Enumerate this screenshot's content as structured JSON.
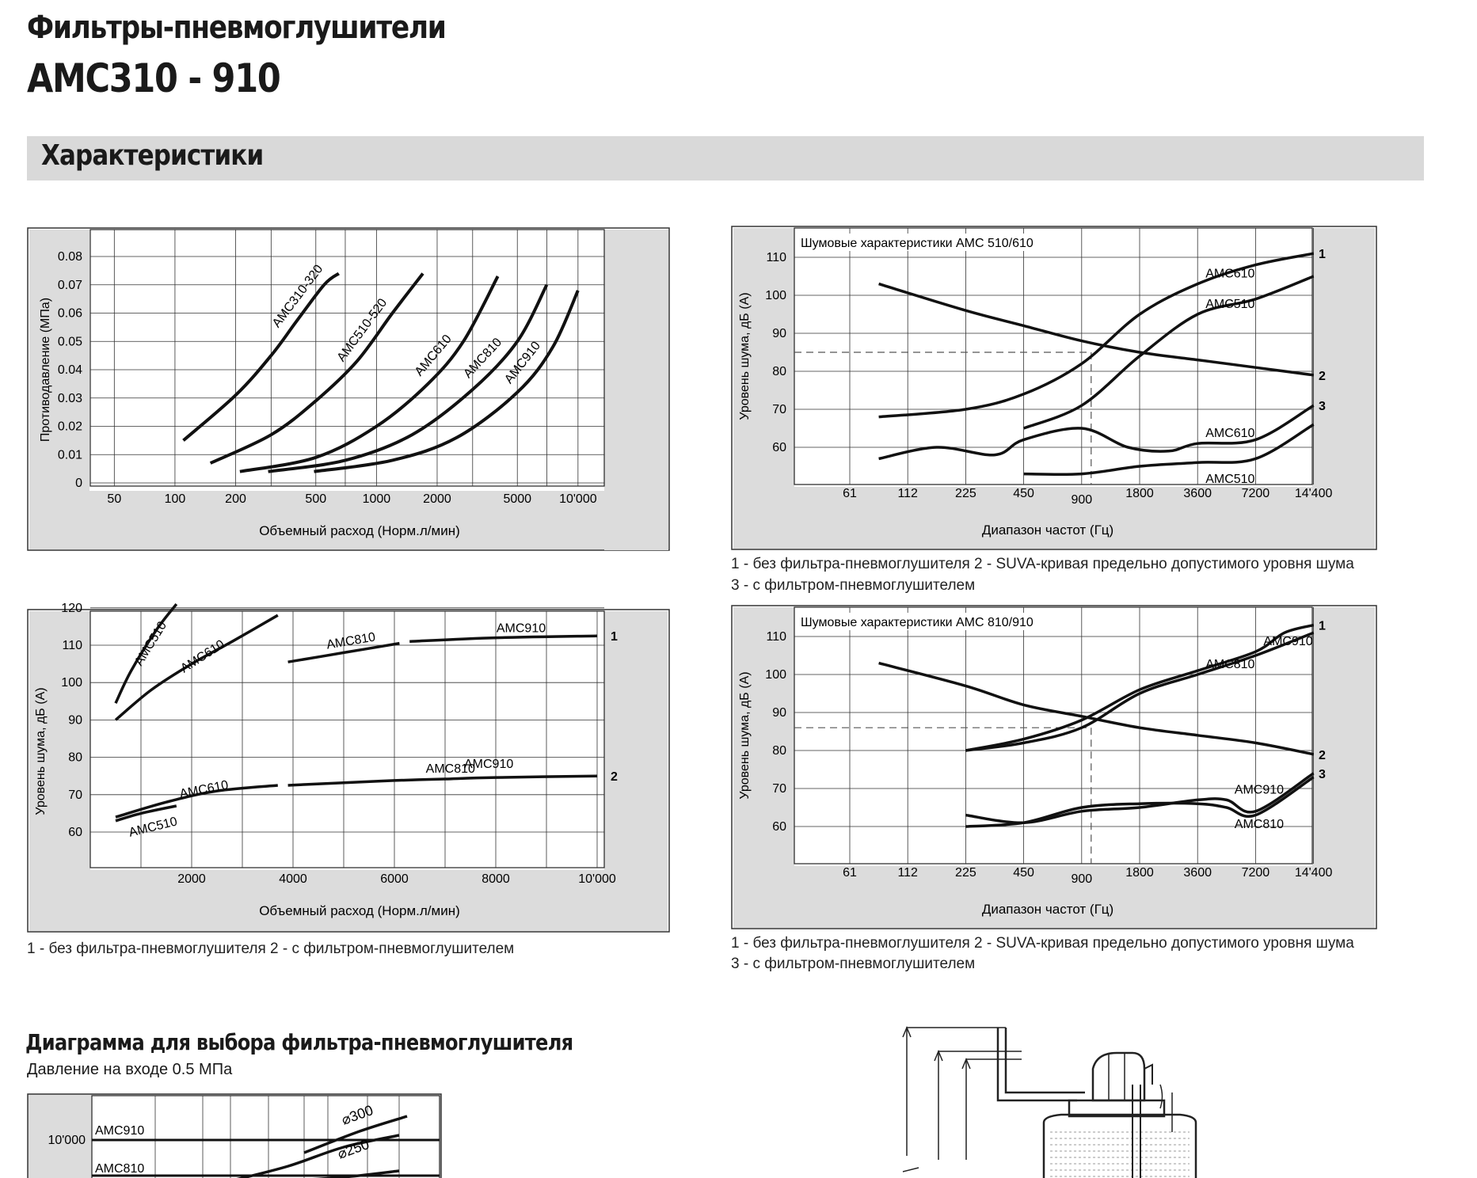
{
  "header": {
    "title_line1": "Фильтры-пневмоглушители",
    "title_line2": "AMC310 - 910",
    "section": "Характеристики"
  },
  "captions": {
    "flow_noise": "1 - без фильтра-пневмоглушителя    2 - с фильтром-пневмоглушителем",
    "noise_line1": "1 - без фильтра-пневмоглушителя    2 - SUVA-кривая предельно допустимого уровня шума",
    "noise_line2": "3 - с фильтром-пневмоглушителем"
  },
  "selection": {
    "title": "Диаграмма для выбора фильтра-пневмоглушителя",
    "note": "Давление на входе 0.5 МПа"
  },
  "chart_data": [
    {
      "id": "backpressure",
      "type": "line",
      "xlabel": "Объемный расход (Норм.л/мин)",
      "ylabel": "Противодавление (МПа)",
      "x_scale": "log",
      "x_ticks": [
        50,
        100,
        200,
        500,
        1000,
        2000,
        5000,
        10000
      ],
      "x_tick_labels": [
        "50",
        "100",
        "200",
        "500",
        "1000",
        "2000",
        "5000",
        "10'000"
      ],
      "y_ticks": [
        0,
        0.01,
        0.02,
        0.03,
        0.04,
        0.05,
        0.06,
        0.07,
        0.08
      ],
      "y_tick_labels": [
        "0",
        "0.01",
        "0.02",
        "0.03",
        "0.04",
        "0.05",
        "0.06",
        "0.07",
        "0.08"
      ],
      "series": [
        {
          "name": "AMC310-320",
          "x": [
            110,
            200,
            300,
            400,
            550,
            650
          ],
          "y": [
            0.015,
            0.031,
            0.045,
            0.057,
            0.07,
            0.074
          ]
        },
        {
          "name": "AMC510-520",
          "x": [
            150,
            300,
            500,
            800,
            1200,
            1700
          ],
          "y": [
            0.007,
            0.017,
            0.029,
            0.043,
            0.06,
            0.074
          ]
        },
        {
          "name": "AMC610",
          "x": [
            210,
            500,
            1000,
            1800,
            2700,
            4000
          ],
          "y": [
            0.004,
            0.009,
            0.02,
            0.035,
            0.05,
            0.073
          ]
        },
        {
          "name": "AMC810",
          "x": [
            290,
            700,
            1500,
            3000,
            5000,
            7000
          ],
          "y": [
            0.004,
            0.008,
            0.017,
            0.033,
            0.05,
            0.07
          ]
        },
        {
          "name": "AMC910",
          "x": [
            490,
            1200,
            2500,
            5000,
            7500,
            10000
          ],
          "y": [
            0.004,
            0.008,
            0.016,
            0.032,
            0.048,
            0.068
          ]
        }
      ]
    },
    {
      "id": "noise_510_610",
      "type": "line",
      "title": "Шумовые характеристики AMC 510/610",
      "xlabel": "Диапазон частот (Гц)",
      "ylabel": "Уровень шума, дБ (А)",
      "x_ticks": [
        "61",
        "112",
        "225",
        "450",
        "900",
        "1800",
        "3600",
        "7200",
        "14'400"
      ],
      "y_ticks": [
        60,
        70,
        80,
        90,
        100,
        110
      ],
      "reference_line": {
        "x": "900",
        "y": 85
      },
      "series": [
        {
          "name": "AMC610",
          "label": "1",
          "x": [
            0.5,
            2,
            3,
            4,
            5,
            6,
            7,
            8
          ],
          "y": [
            68,
            70,
            74,
            82,
            95,
            103,
            108,
            111
          ]
        },
        {
          "name": "AMC510",
          "label": "1",
          "x": [
            3,
            4,
            5,
            6,
            7,
            8
          ],
          "y": [
            65,
            71,
            84,
            95,
            99,
            105
          ]
        },
        {
          "name": "SUVA",
          "label": "2",
          "x": [
            0.5,
            2,
            3,
            4,
            5,
            6,
            7,
            8
          ],
          "y": [
            103,
            96,
            92,
            88,
            85,
            83,
            81,
            79
          ]
        },
        {
          "name": "AMC610",
          "label": "3",
          "x": [
            0.5,
            1.5,
            2.5,
            3,
            4,
            4.8,
            5.5,
            6,
            7,
            8
          ],
          "y": [
            57,
            60,
            58,
            62,
            65,
            60,
            59,
            61,
            62,
            71
          ]
        },
        {
          "name": "AMC510",
          "label": "3",
          "x": [
            3,
            4,
            5,
            6,
            7,
            8
          ],
          "y": [
            53,
            53,
            55,
            56,
            57,
            66
          ]
        }
      ]
    },
    {
      "id": "noise_flow",
      "type": "line",
      "xlabel": "Объемный расход (Норм.л/мин)",
      "ylabel": "Уровень шума, дБ (А)",
      "x_ticks": [
        2000,
        4000,
        6000,
        8000,
        10000
      ],
      "x_tick_labels": [
        "2000",
        "4000",
        "6000",
        "8000",
        "10'000"
      ],
      "y_ticks": [
        60,
        70,
        80,
        90,
        100,
        110,
        120
      ],
      "series": [
        {
          "name": "AMC510",
          "label": "1",
          "x": [
            500,
            800,
            1300,
            1700
          ],
          "y": [
            94.5,
            103,
            114,
            121
          ]
        },
        {
          "name": "AMC610",
          "label": "1",
          "x": [
            500,
            1200,
            2000,
            2800,
            3700
          ],
          "y": [
            90,
            98,
            105,
            111,
            118
          ]
        },
        {
          "name": "AMC810",
          "label": "1",
          "x": [
            3900,
            5000,
            6100
          ],
          "y": [
            105.5,
            108,
            110.5
          ]
        },
        {
          "name": "AMC910",
          "label": "1",
          "x": [
            6300,
            8000,
            10000
          ],
          "y": [
            111,
            112,
            112.5
          ]
        },
        {
          "name": "AMC510",
          "label": "2",
          "x": [
            500,
            1000,
            1700
          ],
          "y": [
            63,
            65,
            67
          ]
        },
        {
          "name": "AMC610",
          "label": "2",
          "x": [
            500,
            1500,
            2500,
            3700
          ],
          "y": [
            64,
            68,
            71,
            72.5
          ]
        },
        {
          "name": "AMC810",
          "label": "2",
          "x": [
            3900,
            5000,
            6000,
            7000,
            8000,
            10000
          ],
          "y": [
            72.5,
            73.2,
            73.8,
            74.2,
            74.6,
            75
          ]
        },
        {
          "name": "AMC910",
          "label": "2",
          "x": [
            8000,
            10000
          ],
          "y": [
            74.6,
            75
          ]
        }
      ],
      "legend": [
        "1",
        "2"
      ]
    },
    {
      "id": "noise_810_910",
      "type": "line",
      "title": "Шумовые характеристики AMC 810/910",
      "xlabel": "Диапазон частот (Гц)",
      "ylabel": "Уровень шума, дБ (А)",
      "x_ticks": [
        "61",
        "112",
        "225",
        "450",
        "900",
        "1800",
        "3600",
        "7200",
        "14'400"
      ],
      "y_ticks": [
        60,
        70,
        80,
        90,
        100,
        110
      ],
      "reference_line": {
        "x": "900",
        "y": 86
      },
      "series": [
        {
          "name": "AMC910",
          "label": "1",
          "x": [
            2,
            3,
            4,
            5,
            6,
            7,
            7.5,
            8
          ],
          "y": [
            80,
            83,
            88,
            96,
            101,
            106,
            111,
            113
          ]
        },
        {
          "name": "AMC810",
          "label": "1",
          "x": [
            2,
            3,
            4,
            5,
            6,
            7,
            8
          ],
          "y": [
            80,
            82,
            86,
            95,
            100,
            105,
            111
          ]
        },
        {
          "name": "SUVA",
          "label": "2",
          "x": [
            0.5,
            2,
            3,
            4,
            5,
            6,
            7,
            8
          ],
          "y": [
            103,
            97,
            92,
            89,
            86,
            84,
            82,
            79
          ]
        },
        {
          "name": "AMC910",
          "label": "3",
          "x": [
            2,
            3,
            4,
            5,
            6,
            6.5,
            7,
            8
          ],
          "y": [
            63,
            61,
            64,
            65,
            67,
            67,
            64,
            74
          ]
        },
        {
          "name": "AMC810",
          "label": "3",
          "x": [
            2,
            3,
            4,
            5,
            6,
            6.5,
            7,
            8
          ],
          "y": [
            60,
            61,
            65,
            66,
            66,
            65,
            63,
            73
          ]
        }
      ]
    },
    {
      "id": "selection",
      "type": "line",
      "y_tick_labels": [
        "10'000"
      ],
      "row_labels": [
        "AMC910",
        "AMC810"
      ],
      "curve_labels": [
        "⌀300",
        "⌀250"
      ]
    }
  ]
}
